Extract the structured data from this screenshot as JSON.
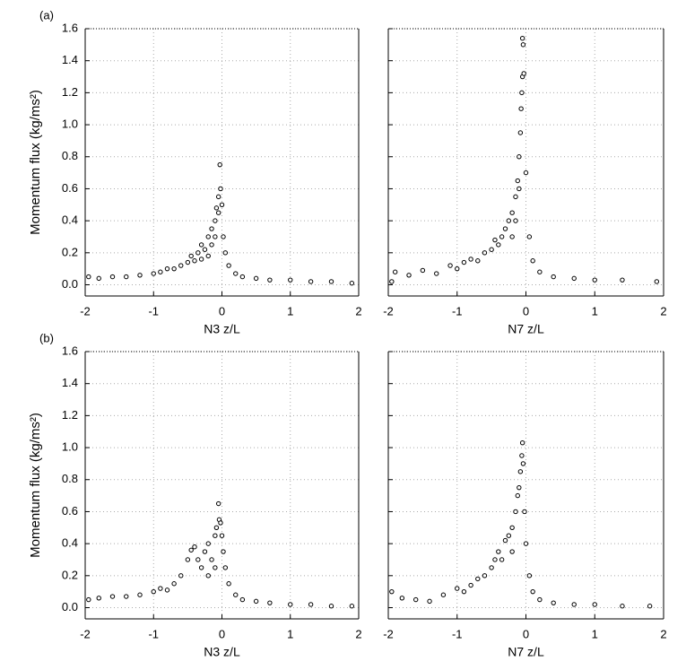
{
  "chart_data": [
    {
      "type": "scatter",
      "annotation": "(a)",
      "x_label": "N3 z/L",
      "y_label": "Momentum flux (kg/ms²)",
      "color": "#000000",
      "grid": true,
      "xlim": [
        -2,
        2
      ],
      "xticks": [
        -2,
        -1,
        0,
        1,
        2
      ],
      "ylim": [
        -0.07,
        1.6
      ],
      "yticks": [
        {
          "value": 0,
          "label": "0.0"
        },
        0.2,
        0.4,
        0.6,
        0.8,
        {
          "value": 1,
          "label": "1.0"
        },
        1.2,
        1.4,
        1.6
      ],
      "x": [
        -1.95,
        -1.8,
        -1.6,
        -1.4,
        -1.2,
        -1.0,
        -0.9,
        -0.8,
        -0.7,
        -0.6,
        -0.5,
        -0.45,
        -0.4,
        -0.35,
        -0.3,
        -0.3,
        -0.25,
        -0.2,
        -0.2,
        -0.15,
        -0.15,
        -0.1,
        -0.1,
        -0.08,
        -0.05,
        -0.05,
        -0.03,
        -0.02,
        0.0,
        0.02,
        0.05,
        0.1,
        0.2,
        0.3,
        0.5,
        0.7,
        1.0,
        1.3,
        1.6,
        1.9
      ],
      "values": [
        0.05,
        0.04,
        0.05,
        0.05,
        0.06,
        0.07,
        0.08,
        0.1,
        0.1,
        0.12,
        0.14,
        0.18,
        0.15,
        0.2,
        0.16,
        0.25,
        0.22,
        0.3,
        0.18,
        0.35,
        0.25,
        0.4,
        0.3,
        0.48,
        0.55,
        0.45,
        0.75,
        0.6,
        0.5,
        0.3,
        0.2,
        0.12,
        0.07,
        0.05,
        0.04,
        0.03,
        0.03,
        0.02,
        0.02,
        0.01
      ]
    },
    {
      "type": "scatter",
      "x_label": "N7 z/L",
      "color": "#000000",
      "grid": true,
      "xlim": [
        -2,
        2
      ],
      "xticks": [
        -2,
        -1,
        0,
        1,
        2
      ],
      "ylim": [
        -0.07,
        1.6
      ],
      "yticks": [
        0,
        0.2,
        0.4,
        0.6,
        0.8,
        1,
        1.2,
        1.4,
        1.6
      ],
      "x": [
        -1.95,
        -1.9,
        -1.7,
        -1.5,
        -1.3,
        -1.1,
        -1.0,
        -0.9,
        -0.8,
        -0.7,
        -0.6,
        -0.5,
        -0.45,
        -0.4,
        -0.35,
        -0.3,
        -0.25,
        -0.2,
        -0.2,
        -0.15,
        -0.15,
        -0.12,
        -0.1,
        -0.1,
        -0.08,
        -0.07,
        -0.06,
        -0.05,
        -0.05,
        -0.04,
        -0.03,
        0.0,
        0.05,
        0.1,
        0.2,
        0.4,
        0.7,
        1.0,
        1.4,
        1.9
      ],
      "values": [
        0.02,
        0.08,
        0.06,
        0.09,
        0.07,
        0.12,
        0.1,
        0.14,
        0.16,
        0.15,
        0.2,
        0.22,
        0.28,
        0.25,
        0.3,
        0.35,
        0.4,
        0.45,
        0.3,
        0.55,
        0.4,
        0.65,
        0.8,
        0.6,
        0.95,
        1.1,
        1.2,
        1.3,
        1.54,
        1.5,
        1.32,
        0.7,
        0.3,
        0.15,
        0.08,
        0.05,
        0.04,
        0.03,
        0.03,
        0.02
      ]
    },
    {
      "type": "scatter",
      "annotation": "(b)",
      "x_label": "N3 z/L",
      "y_label": "Momentum flux (kg/ms²)",
      "color": "#000000",
      "grid": true,
      "xlim": [
        -2,
        2
      ],
      "xticks": [
        -2,
        -1,
        0,
        1,
        2
      ],
      "ylim": [
        -0.07,
        1.6
      ],
      "yticks": [
        {
          "value": 0,
          "label": "0.0"
        },
        0.2,
        0.4,
        0.6,
        0.8,
        {
          "value": 1,
          "label": "1.0"
        },
        1.2,
        1.4,
        1.6
      ],
      "x": [
        -1.95,
        -1.8,
        -1.6,
        -1.4,
        -1.2,
        -1.0,
        -0.9,
        -0.8,
        -0.7,
        -0.6,
        -0.5,
        -0.45,
        -0.4,
        -0.35,
        -0.3,
        -0.25,
        -0.2,
        -0.2,
        -0.15,
        -0.1,
        -0.1,
        -0.08,
        -0.05,
        -0.04,
        -0.02,
        0.0,
        0.02,
        0.05,
        0.1,
        0.2,
        0.3,
        0.5,
        0.7,
        1.0,
        1.3,
        1.6,
        1.9
      ],
      "values": [
        0.05,
        0.06,
        0.07,
        0.07,
        0.08,
        0.1,
        0.12,
        0.11,
        0.15,
        0.2,
        0.3,
        0.36,
        0.38,
        0.3,
        0.25,
        0.35,
        0.4,
        0.2,
        0.3,
        0.45,
        0.25,
        0.5,
        0.65,
        0.55,
        0.53,
        0.45,
        0.35,
        0.25,
        0.15,
        0.08,
        0.05,
        0.04,
        0.03,
        0.02,
        0.02,
        0.01,
        0.01
      ]
    },
    {
      "type": "scatter",
      "x_label": "N7 z/L",
      "color": "#000000",
      "grid": true,
      "xlim": [
        -2,
        2
      ],
      "xticks": [
        -2,
        -1,
        0,
        1,
        2
      ],
      "ylim": [
        -0.07,
        1.6
      ],
      "yticks": [
        0,
        0.2,
        0.4,
        0.6,
        0.8,
        1,
        1.2,
        1.4,
        1.6
      ],
      "x": [
        -1.95,
        -1.8,
        -1.6,
        -1.4,
        -1.2,
        -1.0,
        -0.9,
        -0.8,
        -0.7,
        -0.6,
        -0.5,
        -0.45,
        -0.4,
        -0.35,
        -0.3,
        -0.25,
        -0.2,
        -0.2,
        -0.15,
        -0.12,
        -0.1,
        -0.08,
        -0.06,
        -0.05,
        -0.04,
        -0.02,
        0.0,
        0.05,
        0.1,
        0.2,
        0.4,
        0.7,
        1.0,
        1.4,
        1.8
      ],
      "values": [
        0.1,
        0.06,
        0.05,
        0.04,
        0.08,
        0.12,
        0.1,
        0.14,
        0.18,
        0.2,
        0.25,
        0.3,
        0.35,
        0.3,
        0.42,
        0.45,
        0.5,
        0.35,
        0.6,
        0.7,
        0.75,
        0.85,
        0.95,
        1.03,
        0.9,
        0.6,
        0.4,
        0.2,
        0.1,
        0.05,
        0.03,
        0.02,
        0.02,
        0.01,
        0.01
      ]
    }
  ]
}
